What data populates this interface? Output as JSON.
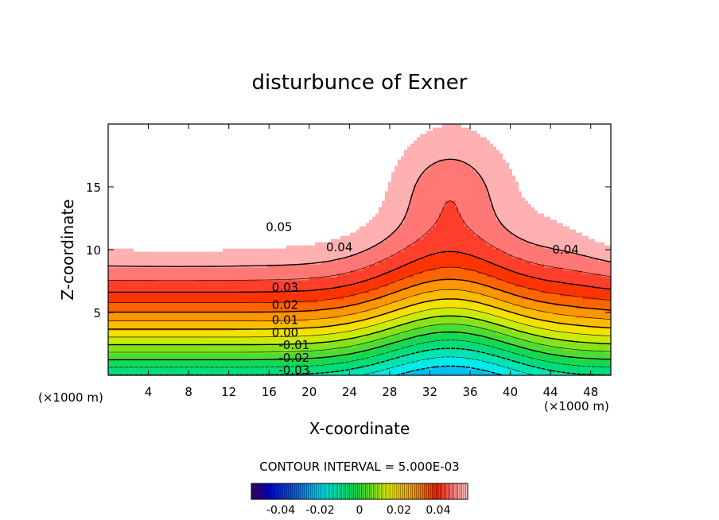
{
  "chart_data": {
    "type": "contour",
    "title": "disturbunce of Exner",
    "xlabel": "X-coordinate",
    "ylabel": "Z-coordinate",
    "x_unit": "(×1000 m)",
    "z_unit": "(×1000 m)",
    "xlim": [
      0,
      50
    ],
    "ylim": [
      0,
      20
    ],
    "xticks": [
      4,
      8,
      12,
      16,
      20,
      24,
      28,
      32,
      36,
      40,
      44,
      48
    ],
    "yticks": [
      5,
      10,
      15
    ],
    "contour_interval_label": "CONTOUR INTERVAL = 5.000E-03",
    "contour_interval": 0.005,
    "contour_labels": [
      {
        "text": "0.05",
        "x": 17.0,
        "z": 11.8
      },
      {
        "text": "0.04",
        "x": 23.0,
        "z": 10.2
      },
      {
        "text": "0.04",
        "x": 45.5,
        "z": 10.0
      },
      {
        "text": "0.03",
        "x": 17.6,
        "z": 7.0
      },
      {
        "text": "0.02",
        "x": 17.6,
        "z": 5.6
      },
      {
        "text": "0.01",
        "x": 17.6,
        "z": 4.4
      },
      {
        "text": "0.00",
        "x": 17.6,
        "z": 3.4
      },
      {
        "text": "-0.01",
        "x": 18.5,
        "z": 2.4
      },
      {
        "text": "-0.02",
        "x": 18.5,
        "z": 1.4
      },
      {
        "text": "-0.03",
        "x": 18.5,
        "z": 0.4
      }
    ],
    "colorbar": {
      "range": [
        -0.055,
        0.055
      ],
      "tick_labels": [
        "-0.04",
        "-0.02",
        "0",
        "0.02",
        "0.04"
      ],
      "tick_values": [
        -0.04,
        -0.02,
        0,
        0.02,
        0.04
      ]
    },
    "grid": false
  }
}
